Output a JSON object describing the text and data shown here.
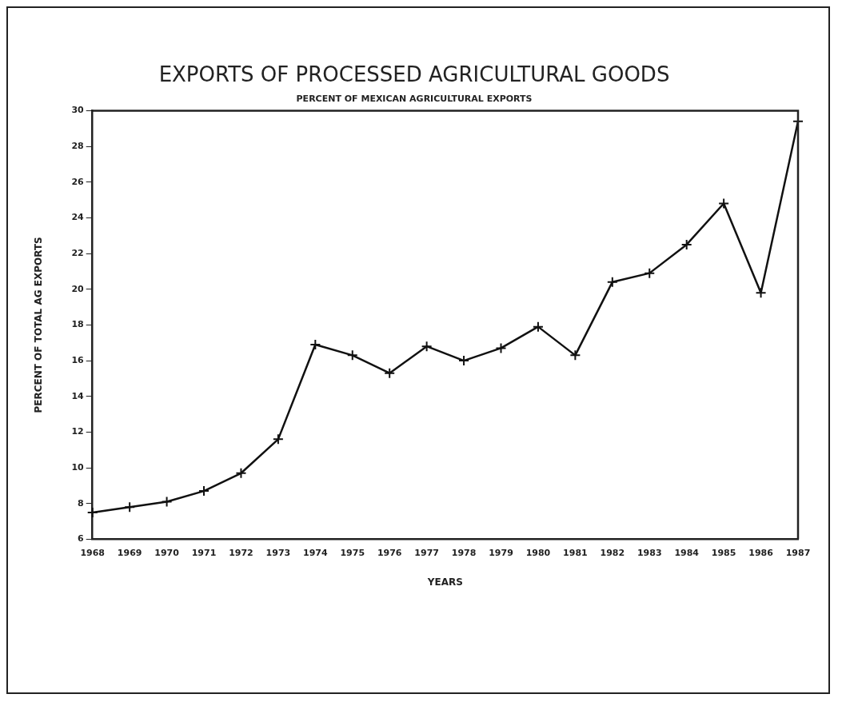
{
  "chart_data": {
    "type": "line",
    "title": "EXPORTS OF PROCESSED AGRICULTURAL GOODS",
    "subtitle": "PERCENT OF MEXICAN AGRICULTURAL EXPORTS",
    "xlabel": "YEARS",
    "ylabel": "PERCENT OF TOTAL AG EXPORTS",
    "categories": [
      "1968",
      "1969",
      "1970",
      "1971",
      "1972",
      "1973",
      "1974",
      "1975",
      "1976",
      "1977",
      "1978",
      "1979",
      "1980",
      "1981",
      "1982",
      "1983",
      "1984",
      "1985",
      "1986",
      "1987"
    ],
    "values": [
      7.5,
      7.8,
      8.1,
      8.7,
      9.7,
      11.6,
      16.9,
      16.3,
      15.3,
      16.8,
      16.0,
      16.7,
      17.9,
      16.3,
      20.4,
      20.9,
      22.5,
      24.8,
      19.8,
      29.4
    ],
    "color": "#111111",
    "ylim": [
      6,
      30
    ],
    "yticks": [
      6,
      8,
      10,
      12,
      14,
      16,
      18,
      20,
      22,
      24,
      26,
      28,
      30
    ],
    "grid": false,
    "legend": false,
    "marker": "cross",
    "line_style": "solid"
  }
}
